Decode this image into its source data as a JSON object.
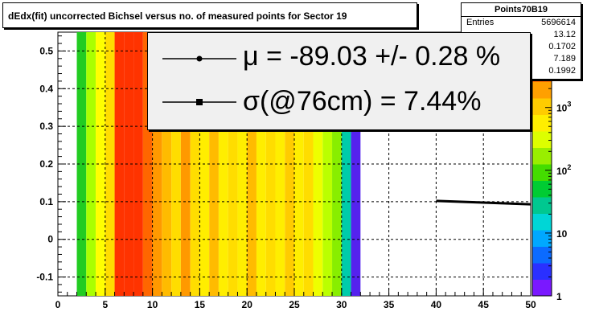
{
  "title": "dEdx(fit) uncorrected Bichsel versus no. of measured points for Sector 19",
  "stats": {
    "name": "Points70B19",
    "rows": [
      {
        "label": "Entries",
        "value": "5696614"
      },
      {
        "label": "",
        "value": "13.12"
      },
      {
        "label": "",
        "value": "0.1702"
      },
      {
        "label": "",
        "value": "7.189"
      },
      {
        "label": "",
        "value": "0.1992"
      }
    ]
  },
  "legend": [
    {
      "text": "μ  = -89.03 +/-  0.28 %",
      "marker": "circle"
    },
    {
      "text": "σ(@76cm) =  7.44%",
      "marker": "square"
    }
  ],
  "chart_data": {
    "type": "heatmap",
    "xlim": [
      0,
      50
    ],
    "ylim": [
      -0.15,
      0.55
    ],
    "xticks": [
      0,
      5,
      10,
      15,
      20,
      25,
      30,
      35,
      40,
      45,
      50
    ],
    "yticks": [
      -0.1,
      0,
      0.1,
      0.2,
      0.3,
      0.4,
      0.5
    ],
    "colorbar": {
      "scale": "log",
      "ticks": [
        1,
        10,
        100,
        1000
      ]
    },
    "grid": true,
    "columns": [
      {
        "x": 2,
        "color": "#22cc22"
      },
      {
        "x": 3,
        "color": "#aaff00"
      },
      {
        "x": 4,
        "color": "#ffff00"
      },
      {
        "x": 5,
        "color": "#ffdd00"
      },
      {
        "x": 6,
        "color": "#ff3300"
      },
      {
        "x": 7,
        "color": "#ff3300"
      },
      {
        "x": 8,
        "color": "#ff3300"
      },
      {
        "x": 9,
        "color": "#ff6600"
      },
      {
        "x": 10,
        "color": "#ff9900"
      },
      {
        "x": 11,
        "color": "#ffbb00"
      },
      {
        "x": 12,
        "color": "#ffdd00"
      },
      {
        "x": 13,
        "color": "#ff9900"
      },
      {
        "x": 14,
        "color": "#ffdd00"
      },
      {
        "x": 15,
        "color": "#ffee00"
      },
      {
        "x": 16,
        "color": "#ffbb00"
      },
      {
        "x": 17,
        "color": "#ffee00"
      },
      {
        "x": 18,
        "color": "#ffdd00"
      },
      {
        "x": 19,
        "color": "#ffee00"
      },
      {
        "x": 20,
        "color": "#ffbb00"
      },
      {
        "x": 21,
        "color": "#ffee00"
      },
      {
        "x": 22,
        "color": "#ffdd00"
      },
      {
        "x": 23,
        "color": "#ffee00"
      },
      {
        "x": 24,
        "color": "#ffcc00"
      },
      {
        "x": 25,
        "color": "#ffee00"
      },
      {
        "x": 26,
        "color": "#ffdd00"
      },
      {
        "x": 27,
        "color": "#eeff00"
      },
      {
        "x": 28,
        "color": "#bbff00"
      },
      {
        "x": 29,
        "color": "#88ee00"
      },
      {
        "x": 30,
        "color": "#00ccaa"
      },
      {
        "x": 31,
        "color": "#5522ee"
      }
    ],
    "fit_line": {
      "x": [
        40,
        50
      ],
      "y": [
        0.102,
        0.093
      ]
    }
  }
}
